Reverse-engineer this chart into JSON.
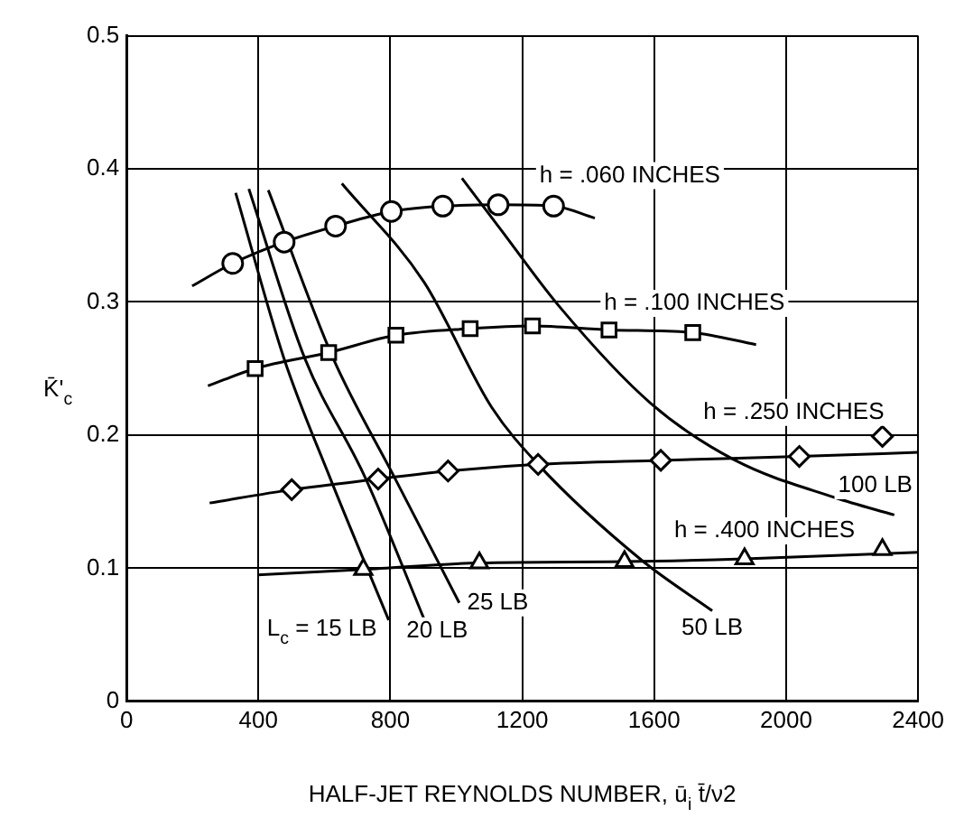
{
  "chart_data": {
    "type": "line",
    "xlabel": "HALF-JET REYNOLDS NUMBER, ū$_{i}$ t̄/ν2",
    "ylabel": "K̄'$_{c}$",
    "xlim": [
      0,
      2400
    ],
    "xticks": [
      0,
      400,
      800,
      1200,
      1600,
      2000,
      2400
    ],
    "ylim": [
      0,
      0.5
    ],
    "yticks": [
      0,
      0.1,
      0.2,
      0.3,
      0.4,
      0.5
    ],
    "grid": true,
    "series": [
      {
        "type": "scatter",
        "marker": "circle",
        "color": "#000000",
        "x": [
          322,
          478,
          634,
          803,
          959,
          1127,
          1295
        ],
        "values": [
          0.329,
          0.345,
          0.357,
          0.368,
          0.372,
          0.373,
          0.372
        ]
      },
      {
        "type": "line",
        "marker": "none",
        "color": "#000000",
        "x": [
          199,
          322,
          478,
          634,
          803,
          959,
          1127,
          1295,
          1420
        ],
        "values": [
          0.312,
          0.329,
          0.345,
          0.357,
          0.368,
          0.372,
          0.373,
          0.372,
          0.363
        ]
      },
      {
        "type": "scatter",
        "marker": "square",
        "color": "#000000",
        "x": [
          390,
          613,
          817,
          1042,
          1231,
          1463,
          1717
        ],
        "values": [
          0.25,
          0.262,
          0.275,
          0.28,
          0.282,
          0.279,
          0.277
        ]
      },
      {
        "type": "line",
        "marker": "none",
        "color": "#000000",
        "x": [
          247,
          390,
          613,
          817,
          1042,
          1231,
          1463,
          1717,
          1909
        ],
        "values": [
          0.237,
          0.25,
          0.262,
          0.275,
          0.28,
          0.282,
          0.279,
          0.277,
          0.268
        ]
      },
      {
        "type": "scatter",
        "marker": "diamond",
        "color": "#000000",
        "x": [
          501,
          763,
          975,
          1248,
          1620,
          2040,
          2292
        ],
        "values": [
          0.159,
          0.167,
          0.173,
          0.178,
          0.181,
          0.184,
          0.199
        ]
      },
      {
        "type": "line",
        "marker": "none",
        "color": "#000000",
        "x": [
          252,
          501,
          763,
          975,
          1248,
          1620,
          2040,
          2400
        ],
        "values": [
          0.149,
          0.159,
          0.167,
          0.173,
          0.178,
          0.181,
          0.184,
          0.187
        ]
      },
      {
        "type": "scatter",
        "marker": "triangle",
        "color": "#000000",
        "x": [
          718,
          1070,
          1510,
          1874,
          2292
        ],
        "values": [
          0.099,
          0.104,
          0.105,
          0.107,
          0.114
        ]
      },
      {
        "type": "line",
        "marker": "none",
        "color": "#000000",
        "x": [
          398,
          718,
          1070,
          1510,
          1874,
          2400
        ],
        "values": [
          0.095,
          0.099,
          0.104,
          0.105,
          0.107,
          0.112
        ]
      },
      {
        "type": "line",
        "marker": "none",
        "color": "#000000",
        "x": [
          331,
          477,
          617,
          795
        ],
        "values": [
          0.382,
          0.258,
          0.168,
          0.061
        ]
      },
      {
        "type": "line",
        "marker": "none",
        "color": "#000000",
        "x": [
          371,
          540,
          724,
          902
        ],
        "values": [
          0.385,
          0.258,
          0.168,
          0.062
        ]
      },
      {
        "type": "line",
        "marker": "none",
        "color": "#000000",
        "x": [
          430,
          626,
          813,
          1009
        ],
        "values": [
          0.384,
          0.258,
          0.168,
          0.074
        ]
      },
      {
        "type": "line",
        "marker": "none",
        "color": "#000000",
        "x": [
          653,
          902,
          1107,
          1248,
          1562,
          1776
        ],
        "values": [
          0.389,
          0.315,
          0.221,
          0.178,
          0.106,
          0.068
        ]
      },
      {
        "type": "line",
        "marker": "none",
        "color": "#000000",
        "x": [
          1017,
          1133,
          1311,
          1589,
          1846,
          2149,
          2328
        ],
        "values": [
          0.393,
          0.355,
          0.297,
          0.224,
          0.181,
          0.153,
          0.14
        ]
      }
    ],
    "annotations": [
      "h = .060 INCHES",
      "h = .100 INCHES",
      "h = .250 INCHES",
      "h = .400 INCHES",
      "100 LB",
      "50 LB",
      "25 LB",
      "20 LB",
      "L$_{c}$ = 15 LB"
    ]
  }
}
